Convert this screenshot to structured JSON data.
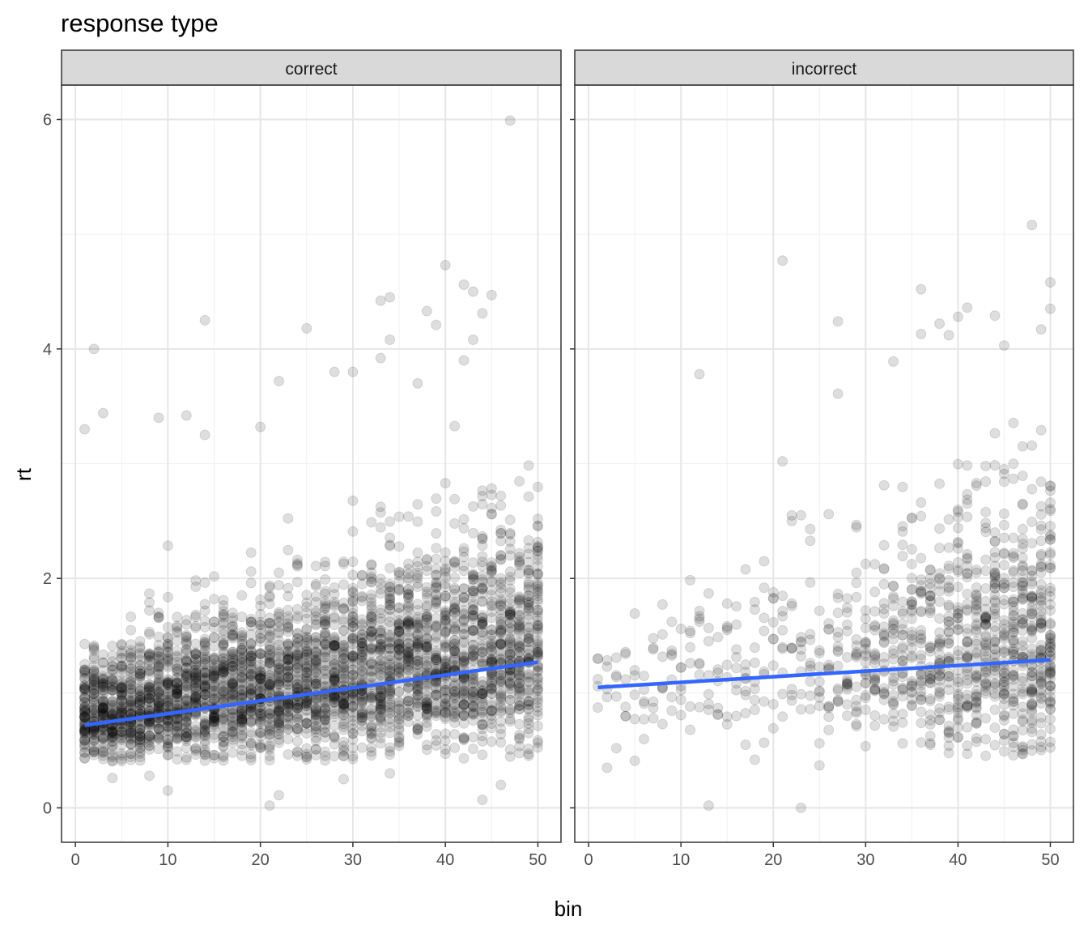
{
  "chart_data": {
    "type": "scatter",
    "title": "response type",
    "xlabel": "bin",
    "ylabel": "rt",
    "xlim": [
      -1.5,
      52.5
    ],
    "ylim": [
      -0.3,
      6.3
    ],
    "x_ticks": [
      0,
      10,
      20,
      30,
      40,
      50
    ],
    "y_ticks": [
      0,
      2,
      4,
      6
    ],
    "grid": true,
    "point_color": "#000000",
    "point_alpha": 0.13,
    "trend_color": "#3366FF",
    "facets": [
      {
        "label": "correct",
        "trend": {
          "x": [
            1,
            50
          ],
          "y": [
            0.72,
            1.27
          ]
        },
        "outliers": [
          {
            "x": 47,
            "y": 5.99
          },
          {
            "x": 40,
            "y": 4.73
          },
          {
            "x": 42,
            "y": 4.56
          },
          {
            "x": 43,
            "y": 4.5
          },
          {
            "x": 45,
            "y": 4.47
          },
          {
            "x": 34,
            "y": 4.45
          },
          {
            "x": 33,
            "y": 4.42
          },
          {
            "x": 38,
            "y": 4.33
          },
          {
            "x": 44,
            "y": 4.31
          },
          {
            "x": 14,
            "y": 4.25
          },
          {
            "x": 39,
            "y": 4.21
          },
          {
            "x": 25,
            "y": 4.18
          },
          {
            "x": 43,
            "y": 4.08
          },
          {
            "x": 34,
            "y": 4.08
          },
          {
            "x": 2,
            "y": 4.0
          },
          {
            "x": 33,
            "y": 3.92
          },
          {
            "x": 42,
            "y": 3.9
          },
          {
            "x": 28,
            "y": 3.8
          },
          {
            "x": 30,
            "y": 3.8
          },
          {
            "x": 22,
            "y": 3.72
          },
          {
            "x": 37,
            "y": 3.7
          },
          {
            "x": 3,
            "y": 3.44
          },
          {
            "x": 12,
            "y": 3.42
          },
          {
            "x": 9,
            "y": 3.4
          },
          {
            "x": 1,
            "y": 3.3
          },
          {
            "x": 20,
            "y": 3.32
          },
          {
            "x": 14,
            "y": 3.25
          },
          {
            "x": 22,
            "y": 0.11
          },
          {
            "x": 21,
            "y": 0.02
          },
          {
            "x": 44,
            "y": 0.07
          },
          {
            "x": 10,
            "y": 0.15
          },
          {
            "x": 4,
            "y": 0.26
          },
          {
            "x": 8,
            "y": 0.28
          },
          {
            "x": 29,
            "y": 0.25
          },
          {
            "x": 46,
            "y": 0.2
          },
          {
            "x": 34,
            "y": 0.3
          }
        ]
      },
      {
        "label": "incorrect",
        "trend": {
          "x": [
            1,
            50
          ],
          "y": [
            1.05,
            1.29
          ]
        },
        "outliers": [
          {
            "x": 48,
            "y": 5.08
          },
          {
            "x": 21,
            "y": 4.77
          },
          {
            "x": 50,
            "y": 4.58
          },
          {
            "x": 36,
            "y": 4.52
          },
          {
            "x": 41,
            "y": 4.36
          },
          {
            "x": 50,
            "y": 4.35
          },
          {
            "x": 44,
            "y": 4.29
          },
          {
            "x": 40,
            "y": 4.28
          },
          {
            "x": 27,
            "y": 4.24
          },
          {
            "x": 38,
            "y": 4.22
          },
          {
            "x": 49,
            "y": 4.17
          },
          {
            "x": 36,
            "y": 4.13
          },
          {
            "x": 39,
            "y": 4.12
          },
          {
            "x": 45,
            "y": 4.03
          },
          {
            "x": 33,
            "y": 3.89
          },
          {
            "x": 12,
            "y": 3.78
          },
          {
            "x": 27,
            "y": 3.61
          },
          {
            "x": 21,
            "y": 3.02
          },
          {
            "x": 1,
            "y": 1.3
          },
          {
            "x": 2,
            "y": 0.35
          },
          {
            "x": 5,
            "y": 0.41
          },
          {
            "x": 13,
            "y": 0.02
          },
          {
            "x": 23,
            "y": 0.0
          },
          {
            "x": 10,
            "y": 1.56
          },
          {
            "x": 12,
            "y": 1.67
          },
          {
            "x": 15,
            "y": 1.78
          },
          {
            "x": 9,
            "y": 1.37
          },
          {
            "x": 4,
            "y": 0.88
          },
          {
            "x": 7,
            "y": 0.78
          },
          {
            "x": 3,
            "y": 0.52
          },
          {
            "x": 6,
            "y": 0.6
          },
          {
            "x": 11,
            "y": 0.68
          },
          {
            "x": 8,
            "y": 0.73
          },
          {
            "x": 17,
            "y": 0.55
          },
          {
            "x": 18,
            "y": 0.42
          },
          {
            "x": 22,
            "y": 2.5
          },
          {
            "x": 24,
            "y": 2.43
          },
          {
            "x": 26,
            "y": 2.56
          },
          {
            "x": 25,
            "y": 0.37
          }
        ]
      }
    ]
  }
}
